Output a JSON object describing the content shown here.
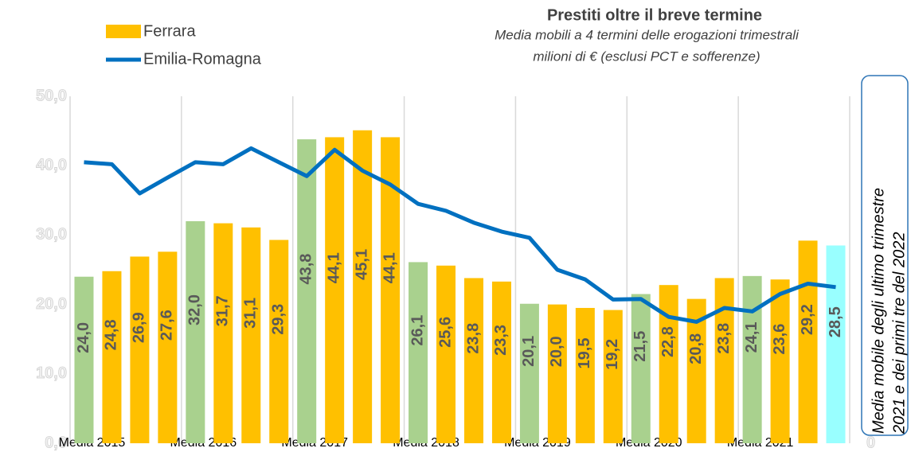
{
  "chart_data": {
    "type": "bar_line",
    "title": "Prestiti oltre il breve termine",
    "subtitle": [
      "Media mobili a 4 termini delle erogazioni trimestrali",
      "milioni di € (esclusi PCT e sofferenze)"
    ],
    "annotation": [
      "Media mobile degli ultimo trimestre",
      "2021 e dei primi tre del 2022"
    ],
    "categories": [
      "Media 2015",
      null,
      null,
      null,
      "Media 2016",
      null,
      null,
      null,
      "Media 2017",
      null,
      null,
      null,
      "Media 2018",
      null,
      null,
      null,
      "Media 2019",
      null,
      null,
      null,
      "Media 2020",
      null,
      null,
      null,
      "Media 2021",
      null,
      null,
      null
    ],
    "series": [
      {
        "name": "Ferrara",
        "color": "#ffc000",
        "bar_colors": [
          "#a9d18e",
          "#ffc000",
          "#ffc000",
          "#ffc000",
          "#a9d18e",
          "#ffc000",
          "#ffc000",
          "#ffc000",
          "#a9d18e",
          "#ffc000",
          "#ffc000",
          "#ffc000",
          "#a9d18e",
          "#ffc000",
          "#ffc000",
          "#ffc000",
          "#a9d18e",
          "#ffc000",
          "#ffc000",
          "#ffc000",
          "#a9d18e",
          "#ffc000",
          "#ffc000",
          "#ffc000",
          "#a9d18e",
          "#ffc000",
          "#ffc000",
          "#99ffff"
        ],
        "values": [
          24.0,
          24.8,
          26.9,
          27.6,
          32.0,
          31.7,
          31.1,
          29.3,
          43.8,
          44.1,
          45.1,
          44.1,
          26.1,
          25.6,
          23.8,
          23.3,
          20.1,
          20.0,
          19.5,
          19.2,
          21.5,
          22.8,
          20.8,
          23.8,
          24.1,
          23.6,
          29.2,
          28.5
        ],
        "value_labels": [
          "24,0",
          "24,8",
          "26,9",
          "27,6",
          "32,0",
          "31,7",
          "31,1",
          "29,3",
          "43,8",
          "44,1",
          "45,1",
          "44,1",
          "26,1",
          "25,6",
          "23,8",
          "23,3",
          "20,1",
          "20,0",
          "19,5",
          "19,2",
          "21,5",
          "22,8",
          "20,8",
          "23,8",
          "24,1",
          "23,6",
          "29,2",
          "28,5"
        ]
      },
      {
        "name": "Emilia-Romagna",
        "color": "#0070c0",
        "axis": "y2",
        "values": [
          1134,
          1126,
          1008,
          1072,
          1134,
          1126,
          1190,
          1134,
          1078,
          1184,
          1100,
          1044,
          966,
          938,
          890,
          854,
          829,
          700,
          661,
          580,
          582,
          510,
          490,
          546,
          532,
          602,
          644,
          630
        ]
      }
    ],
    "ylim": [
      0,
      50
    ],
    "yticks": [
      {
        "value": 0,
        "label": "0,0"
      },
      {
        "value": 10,
        "label": "10,0"
      },
      {
        "value": 20,
        "label": "20,0"
      },
      {
        "value": 30,
        "label": "30,0"
      },
      {
        "value": 40,
        "label": "40,0"
      },
      {
        "value": 50,
        "label": "50,0"
      }
    ],
    "y2lim": [
      0,
      1400
    ],
    "y2ticks": [
      0,
      200,
      400,
      600,
      800,
      1000,
      1200,
      1400
    ],
    "grid": false
  }
}
